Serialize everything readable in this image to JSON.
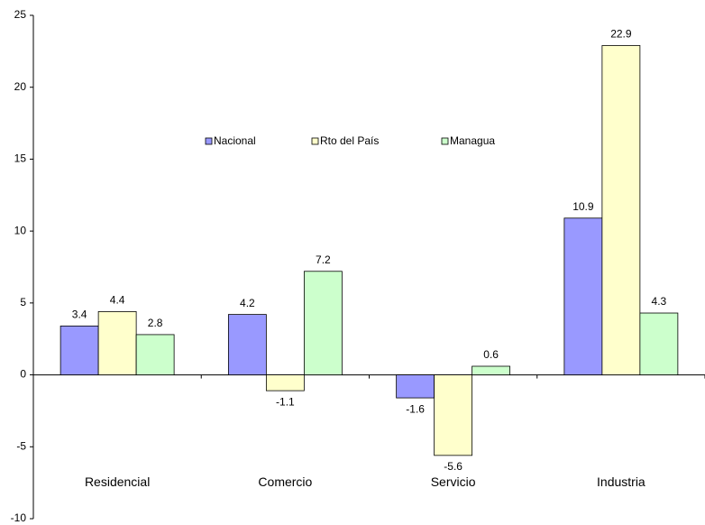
{
  "chart_data": {
    "type": "bar",
    "categories": [
      "Residencial",
      "Comercio",
      "Servicio",
      "Industria"
    ],
    "series": [
      {
        "name": "Nacional",
        "color": "#9999ff",
        "values": [
          3.4,
          4.2,
          -1.6,
          10.9
        ]
      },
      {
        "name": "Rto del País",
        "color": "#ffffcc",
        "values": [
          4.4,
          -1.1,
          -5.6,
          22.9
        ]
      },
      {
        "name": "Managua",
        "color": "#ccffcc",
        "values": [
          2.8,
          7.2,
          0.6,
          4.3
        ]
      }
    ],
    "ylim": [
      -10,
      25
    ],
    "yticks": [
      -10,
      -5,
      0,
      5,
      10,
      15,
      20,
      25
    ],
    "legend": "top-center"
  }
}
